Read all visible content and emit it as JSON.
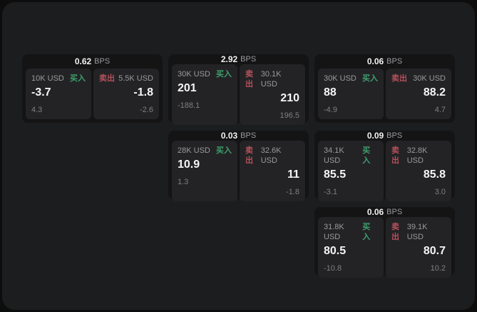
{
  "labels": {
    "bps_unit": "BPS",
    "buy": "买入",
    "sell": "卖出"
  },
  "colors": {
    "page_bg": "#0d0d0d",
    "window_bg": "#1c1d1e",
    "card_bg": "#141415",
    "panel_bg": "#232325",
    "buy_green": "#3f9f6d",
    "sell_red": "#b5505c",
    "value_white": "#f5f5f5",
    "label_gray": "#9a9a9e",
    "sub_gray": "#7f7f82"
  },
  "cards": [
    {
      "bps": "0.62",
      "buy": {
        "amount": "10K USD",
        "value": "-3.7",
        "sub": "4.3"
      },
      "sell": {
        "amount": "5.5K USD",
        "value": "-1.8",
        "sub": "-2.6"
      }
    },
    {
      "bps": "2.92",
      "buy": {
        "amount": "30K USD",
        "value": "201",
        "sub": "-188.1"
      },
      "sell": {
        "amount": "30.1K USD",
        "value": "210",
        "sub": "196.5"
      }
    },
    {
      "bps": "0.06",
      "buy": {
        "amount": "30K USD",
        "value": "88",
        "sub": "-4.9"
      },
      "sell": {
        "amount": "30K USD",
        "value": "88.2",
        "sub": "4.7"
      }
    },
    {
      "bps": "0.03",
      "buy": {
        "amount": "28K USD",
        "value": "10.9",
        "sub": "1.3"
      },
      "sell": {
        "amount": "32.6K USD",
        "value": "11",
        "sub": "-1.8"
      }
    },
    {
      "bps": "0.09",
      "buy": {
        "amount": "34.1K USD",
        "value": "85.5",
        "sub": "-3.1"
      },
      "sell": {
        "amount": "32.8K USD",
        "value": "85.8",
        "sub": "3.0"
      }
    },
    {
      "bps": "0.06",
      "buy": {
        "amount": "31.8K USD",
        "value": "80.5",
        "sub": "-10.8"
      },
      "sell": {
        "amount": "39.1K USD",
        "value": "80.7",
        "sub": "10.2"
      }
    }
  ]
}
